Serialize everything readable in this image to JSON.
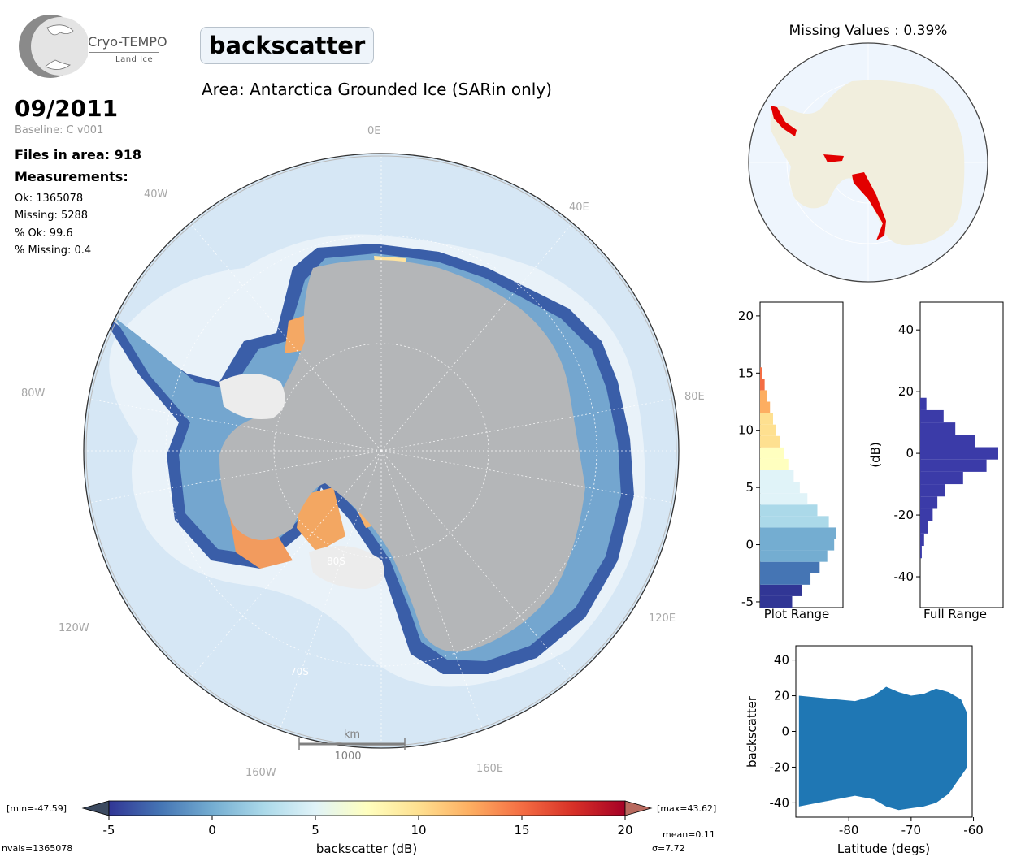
{
  "logo": {
    "name": "Cryo-TEMPO",
    "subtitle": "Land Ice"
  },
  "title": "backscatter",
  "area": "Area: Antarctica Grounded Ice (SARin only)",
  "date": "09/2011",
  "baseline": "Baseline: C v001",
  "files": "Files in area: 918",
  "measurements_label": "Measurements:",
  "stats": {
    "ok": "Ok: 1365078",
    "missing": "Missing: 5288",
    "pct_ok": "% Ok: 99.6",
    "pct_missing": "% Missing: 0.4"
  },
  "missing_values": "Missing Values : 0.39%",
  "map": {
    "lon_labels": [
      "0E",
      "40W",
      "40E",
      "80W",
      "80E",
      "120W",
      "120E",
      "160W",
      "160E"
    ],
    "lat_labels": [
      "80S",
      "70S"
    ],
    "scalebar": {
      "unit": "km",
      "value": "1000"
    },
    "colors": {
      "ocean": "#d6e7f5",
      "ice": "#b4b6b8",
      "shelf": "#ececec"
    }
  },
  "colorbar": {
    "min_label": "[min=-47.59]",
    "max_label": "[max=43.62]",
    "label": "backscatter (dB)",
    "ticks": [
      "-5",
      "0",
      "5",
      "10",
      "15",
      "20"
    ],
    "nvals": "nvals=1365078",
    "mean": "mean=0.11",
    "sigma": "σ=7.72",
    "colormap": [
      "#313695",
      "#4575b4",
      "#74add1",
      "#abd9e9",
      "#e0f3f8",
      "#ffffbf",
      "#fee090",
      "#fdae61",
      "#f46d43",
      "#d73027",
      "#a50026"
    ]
  },
  "chart_data": [
    {
      "type": "bar",
      "orientation": "horizontal",
      "xlabel": "Plot Range",
      "y_ticks": [
        "20",
        "15",
        "10",
        "5",
        "0",
        "-5"
      ],
      "ylim": [
        -5.5,
        21.2
      ],
      "bins_center": [
        -5,
        -4,
        -3,
        -2,
        -1,
        0,
        1,
        2,
        3,
        4,
        5,
        6,
        7,
        8,
        9,
        10,
        11,
        12,
        13,
        14,
        15,
        16
      ],
      "counts": [
        0.42,
        0.55,
        0.66,
        0.78,
        0.88,
        0.97,
        1.0,
        0.9,
        0.75,
        0.62,
        0.52,
        0.44,
        0.37,
        0.31,
        0.26,
        0.21,
        0.17,
        0.13,
        0.09,
        0.06,
        0.03,
        0.0
      ]
    },
    {
      "type": "bar",
      "orientation": "horizontal",
      "xlabel": "Full Range",
      "ylabel": "(dB)",
      "y_ticks": [
        "40",
        "20",
        "0",
        "-20",
        "-40"
      ],
      "ylim": [
        -50,
        49
      ],
      "bins_center": [
        -32,
        -28,
        -24,
        -20,
        -16,
        -12,
        -8,
        -4,
        0,
        4,
        8,
        12,
        16
      ],
      "counts": [
        0.02,
        0.05,
        0.1,
        0.16,
        0.22,
        0.32,
        0.55,
        0.85,
        1.0,
        0.7,
        0.45,
        0.3,
        0.08
      ]
    },
    {
      "type": "scatter",
      "xlabel": "Latitude (degs)",
      "ylabel": "backscatter",
      "x_ticks": [
        "-80",
        "-70",
        "-60"
      ],
      "y_ticks": [
        "40",
        "20",
        "0",
        "-20",
        "-40"
      ],
      "xlim": [
        -88.5,
        -60.2
      ],
      "ylim": [
        -48,
        48
      ],
      "color": "#1f77b4",
      "envelope": {
        "lat": [
          -88,
          -85,
          -82,
          -79,
          -76,
          -74,
          -72,
          -70,
          -68,
          -66,
          -64,
          -62,
          -61
        ],
        "upper": [
          20,
          19,
          18,
          17,
          20,
          25,
          22,
          20,
          21,
          24,
          22,
          18,
          10
        ],
        "lower": [
          -42,
          -40,
          -38,
          -36,
          -38,
          -42,
          -44,
          -43,
          -42,
          -40,
          -35,
          -25,
          -20
        ]
      }
    }
  ]
}
